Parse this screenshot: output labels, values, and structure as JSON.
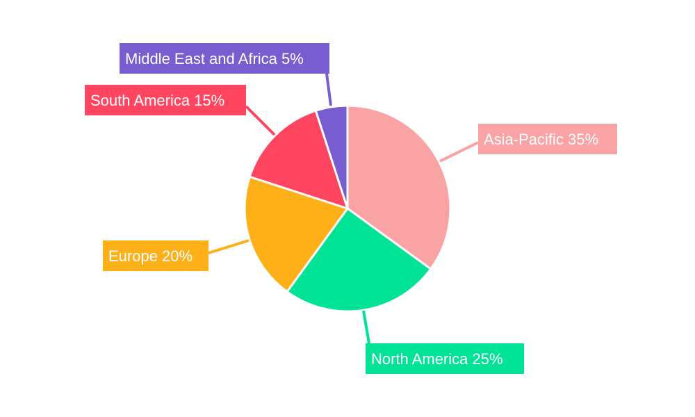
{
  "chart_data": {
    "type": "pie",
    "title": "",
    "start_angle": "top, clockwise",
    "legend": "none",
    "slices": [
      {
        "label": "Asia-Pacific",
        "value": 35,
        "text": "Asia-Pacific 35%",
        "color": "#F9A3A4"
      },
      {
        "label": "North America",
        "value": 25,
        "text": "North America 25%",
        "color": "#00E396"
      },
      {
        "label": "Europe",
        "value": 20,
        "text": "Europe 20%",
        "color": "#FEB019"
      },
      {
        "label": "South America",
        "value": 15,
        "text": "South America 15%",
        "color": "#FF4560"
      },
      {
        "label": "Middle East and Africa",
        "value": 5,
        "text": "Middle East and Africa 5%",
        "color": "#775DD0"
      }
    ]
  }
}
